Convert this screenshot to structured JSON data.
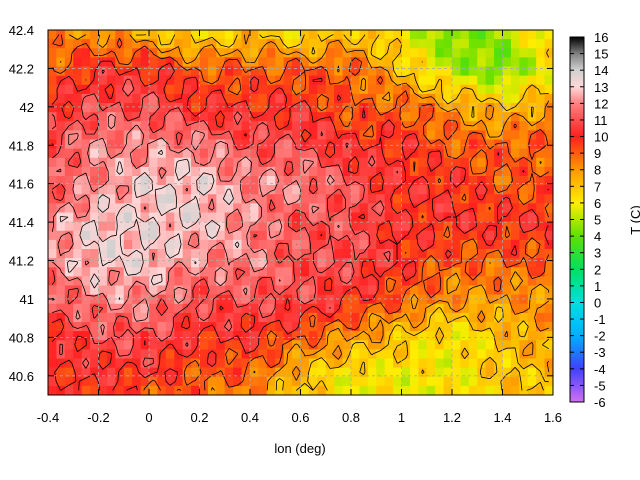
{
  "chart_data": {
    "type": "heatmap",
    "title": "",
    "xlabel": "lon (deg)",
    "ylabel": "",
    "colorbar_label": "T (C)",
    "xlim": [
      -0.4,
      1.6
    ],
    "ylim": [
      40.5,
      42.4
    ],
    "xticks": [
      "-0.4",
      "-0.2",
      "0",
      "0.2",
      "0.4",
      "0.6",
      "0.8",
      "1",
      "1.2",
      "1.4",
      "1.6"
    ],
    "yticks": [
      "40.6",
      "40.8",
      "41",
      "41.2",
      "41.4",
      "41.6",
      "41.8",
      "42",
      "42.2",
      "42.4"
    ],
    "colorbar_ticks": [
      "-6",
      "-5",
      "-4",
      "-3",
      "-2",
      "-1",
      "0",
      "1",
      "2",
      "3",
      "4",
      "5",
      "6",
      "7",
      "8",
      "9",
      "10",
      "11",
      "12",
      "13",
      "14",
      "15",
      "16"
    ],
    "colorbar_range": [
      -6,
      16
    ],
    "grid": true,
    "field": {
      "description": "surface temperature over lon/lat grid",
      "lons": [
        -0.4,
        -0.2,
        0.0,
        0.2,
        0.4,
        0.6,
        0.8,
        1.0,
        1.2,
        1.4,
        1.6
      ],
      "lats": [
        42.4,
        42.2,
        42.0,
        41.8,
        41.6,
        41.4,
        41.2,
        41.0,
        40.8,
        40.6,
        40.5
      ],
      "values": [
        [
          8,
          8,
          7,
          6,
          7,
          6,
          7,
          6,
          4,
          5,
          7
        ],
        [
          9,
          10,
          10,
          9,
          9,
          9,
          9,
          7,
          5,
          4,
          6
        ],
        [
          10,
          11,
          11,
          10,
          10,
          10,
          9,
          9,
          8,
          7,
          8
        ],
        [
          11,
          12,
          12,
          12,
          11,
          11,
          10,
          10,
          9,
          9,
          9
        ],
        [
          11,
          12,
          13,
          13,
          12,
          12,
          11,
          10,
          10,
          9,
          9
        ],
        [
          12,
          13,
          13,
          13,
          12,
          11,
          11,
          10,
          10,
          10,
          10
        ],
        [
          12,
          13,
          13,
          12,
          12,
          11,
          11,
          10,
          9,
          9,
          9
        ],
        [
          11,
          12,
          12,
          11,
          11,
          11,
          10,
          9,
          8,
          8,
          8
        ],
        [
          10,
          11,
          11,
          10,
          10,
          9,
          8,
          7,
          6,
          7,
          8
        ],
        [
          10,
          10,
          10,
          9,
          9,
          7,
          6,
          6,
          6,
          7,
          7
        ],
        [
          10,
          10,
          9,
          9,
          8,
          7,
          6,
          6,
          6,
          7,
          7
        ]
      ]
    },
    "colorscale": [
      {
        "t": -6,
        "color": "#d070f0"
      },
      {
        "t": -4,
        "color": "#4040ff"
      },
      {
        "t": -2,
        "color": "#00b0ff"
      },
      {
        "t": 0,
        "color": "#00e0e0"
      },
      {
        "t": 2,
        "color": "#00e060"
      },
      {
        "t": 4,
        "color": "#60e000"
      },
      {
        "t": 6,
        "color": "#ffee00"
      },
      {
        "t": 8,
        "color": "#ff9900"
      },
      {
        "t": 10,
        "color": "#ff2020"
      },
      {
        "t": 12,
        "color": "#ff8080"
      },
      {
        "t": 13,
        "color": "#ffd8d8"
      },
      {
        "t": 14,
        "color": "#d0d0d0"
      },
      {
        "t": 15,
        "color": "#808080"
      },
      {
        "t": 16,
        "color": "#000000"
      }
    ]
  }
}
